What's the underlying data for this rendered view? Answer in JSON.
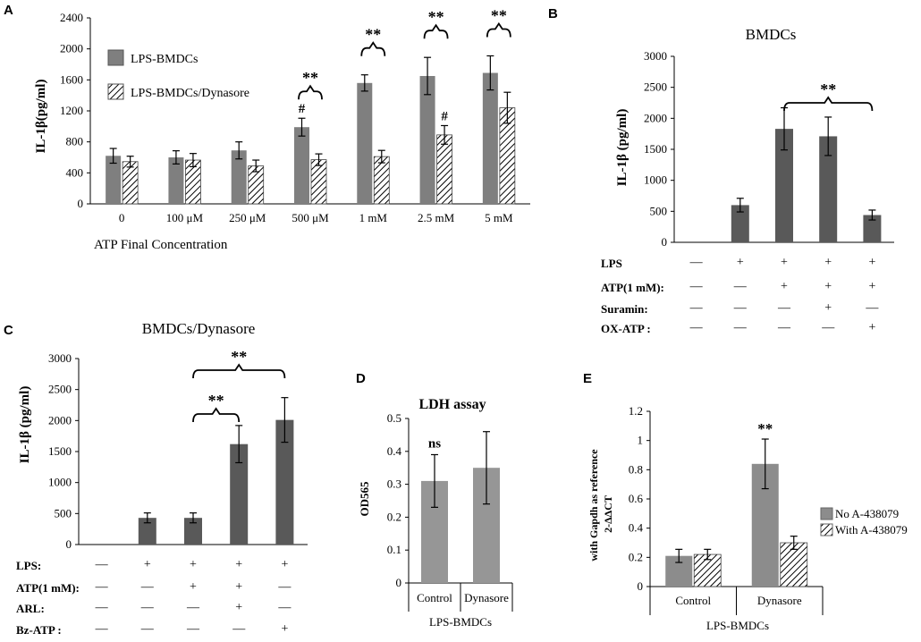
{
  "chart_data": [
    {
      "panel": "A",
      "type": "bar",
      "title": "",
      "xlabel": "ATP  Final Concentration",
      "ylabel": "IL-1β(pg/ml)",
      "ylim": [
        0,
        2400
      ],
      "yticks": [
        "0",
        "400",
        "800",
        "1200",
        "1600",
        "2000",
        "2400"
      ],
      "categories": [
        "0",
        "100 μM",
        "250 μM",
        "500 μM",
        "1 mM",
        "2.5 mM",
        "5 mM"
      ],
      "legend": [
        "LPS-BMDCs",
        "LPS-BMDCs/Dynasore"
      ],
      "series": [
        {
          "name": "LPS-BMDCs",
          "color": "#7f7f7f",
          "values": [
            620,
            600,
            690,
            990,
            1560,
            1650,
            1690
          ],
          "errors": [
            95,
            85,
            110,
            115,
            105,
            240,
            220
          ]
        },
        {
          "name": "LPS-BMDCs/Dynasore",
          "color": "#hatch",
          "values": [
            545,
            565,
            490,
            570,
            610,
            890,
            1240
          ],
          "errors": [
            70,
            85,
            75,
            75,
            80,
            120,
            200
          ]
        }
      ],
      "annotations": [
        {
          "text": "#",
          "category": 3,
          "series": 0
        },
        {
          "text": "#",
          "category": 5,
          "series": 1
        },
        {
          "text": "**",
          "category": 3
        },
        {
          "text": "**",
          "category": 4
        },
        {
          "text": "**",
          "category": 5
        },
        {
          "text": "**",
          "category": 6
        }
      ]
    },
    {
      "panel": "B",
      "type": "bar",
      "title": "BMDCs",
      "ylabel": "IL-1β (pg/ml)",
      "ylim": [
        0,
        3000
      ],
      "yticks": [
        "0",
        "500",
        "1000",
        "1500",
        "2000",
        "2500",
        "3000"
      ],
      "values": [
        0,
        600,
        1830,
        1710,
        440
      ],
      "errors": [
        0,
        110,
        340,
        310,
        80
      ],
      "color": "#595959",
      "conditions": [
        {
          "label": "LPS",
          "marks": [
            "—",
            "+",
            "+",
            "+",
            "+"
          ]
        },
        {
          "label": "ATP(1 mM):",
          "marks": [
            "—",
            "—",
            "+",
            "+",
            "+"
          ]
        },
        {
          "label": "Suramin:",
          "marks": [
            "—",
            "—",
            "—",
            "+",
            "—"
          ]
        },
        {
          "label": "OX-ATP :",
          "marks": [
            "—",
            "—",
            "—",
            "—",
            "+"
          ]
        }
      ],
      "annotations": [
        {
          "text": "**",
          "from": 2,
          "to": 4
        }
      ]
    },
    {
      "panel": "C",
      "type": "bar",
      "title": "BMDCs/Dynasore",
      "ylabel": "IL-1β (pg/ml)",
      "ylim": [
        0,
        3000
      ],
      "yticks": [
        "0",
        "500",
        "1000",
        "1500",
        "2000",
        "2500",
        "3000"
      ],
      "values": [
        0,
        430,
        430,
        1620,
        2010
      ],
      "errors": [
        0,
        80,
        80,
        300,
        360
      ],
      "color": "#595959",
      "conditions": [
        {
          "label": "LPS:",
          "marks": [
            "—",
            "+",
            "+",
            "+",
            "+"
          ]
        },
        {
          "label": "ATP(1 mM):",
          "marks": [
            "—",
            "—",
            "+",
            "+",
            "—"
          ]
        },
        {
          "label": "ARL:",
          "marks": [
            "—",
            "—",
            "—",
            "+",
            "—"
          ]
        },
        {
          "label": "Bz-ATP :",
          "marks": [
            "—",
            "—",
            "—",
            "—",
            "+"
          ]
        }
      ],
      "annotations": [
        {
          "text": "**",
          "from": 2,
          "to": 3
        },
        {
          "text": "**",
          "from": 2,
          "to": 4
        }
      ]
    },
    {
      "panel": "D",
      "type": "bar",
      "title": "LDH assay",
      "ylabel": "OD565",
      "ylim": [
        0,
        0.5
      ],
      "yticks": [
        "0",
        "0.1",
        "0.2",
        "0.3",
        "0.4",
        "0.5"
      ],
      "categories": [
        "Control",
        "Dynasore"
      ],
      "group_label": "LPS-BMDCs",
      "values": [
        0.31,
        0.35
      ],
      "errors": [
        0.08,
        0.11
      ],
      "color": "#969696",
      "annotations": [
        {
          "text": "ns",
          "category": 0
        }
      ]
    },
    {
      "panel": "E",
      "type": "bar",
      "title": "",
      "ylabel": "with Gapdh as reference",
      "ylabel2": "2-ΔΔCT",
      "ylim": [
        0,
        1.2
      ],
      "yticks": [
        "0",
        "0.2",
        "0.4",
        "0.6",
        "0.8",
        "1",
        "1.2"
      ],
      "categories": [
        "Control",
        "Dynasore"
      ],
      "group_label": "LPS-BMDCs",
      "legend": [
        "No A-438079",
        "With A-438079"
      ],
      "series": [
        {
          "name": "No A-438079",
          "color": "#8c8c8c",
          "values": [
            0.21,
            0.84
          ],
          "errors": [
            0.045,
            0.17
          ]
        },
        {
          "name": "With A-438079",
          "color": "#hatch",
          "values": [
            0.22,
            0.3
          ],
          "errors": [
            0.035,
            0.045
          ]
        }
      ],
      "annotations": [
        {
          "text": "**",
          "category": 1,
          "series": 0
        }
      ]
    }
  ],
  "labels": {
    "a": "A",
    "b": "B",
    "c": "C",
    "d": "D",
    "e": "E"
  }
}
